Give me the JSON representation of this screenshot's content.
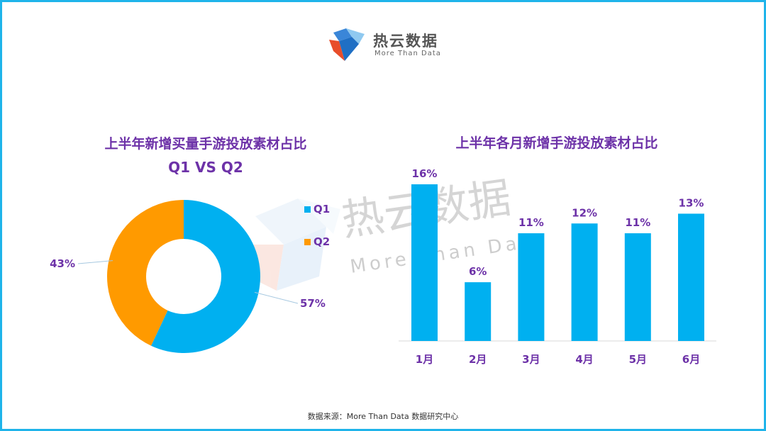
{
  "logo": {
    "name": "热云数据",
    "tagline": "More Than Data"
  },
  "watermark": {
    "name": "热云数据",
    "tagline": "More Than Data"
  },
  "source": "数据来源：More Than Data 数据研究中心",
  "colors": {
    "frame": "#1fb4ea",
    "title": "#6d32a8",
    "q1": "#00b0f0",
    "q2": "#ff9a00",
    "bar": "#00b0f0"
  },
  "chart_data": [
    {
      "type": "pie",
      "donut": true,
      "title": "上半年新增买量手游投放素材占比",
      "subtitle": "Q1 VS Q2",
      "categories": [
        "Q1",
        "Q2"
      ],
      "values": [
        57,
        43
      ],
      "labels": [
        "57%",
        "43%"
      ],
      "legend": "right"
    },
    {
      "type": "bar",
      "title": "上半年各月新增手游投放素材占比",
      "categories": [
        "1月",
        "2月",
        "3月",
        "4月",
        "5月",
        "6月"
      ],
      "values": [
        16,
        6,
        11,
        12,
        11,
        13
      ],
      "labels": [
        "16%",
        "6%",
        "11%",
        "12%",
        "11%",
        "13%"
      ],
      "ylim": [
        0,
        16
      ]
    }
  ]
}
